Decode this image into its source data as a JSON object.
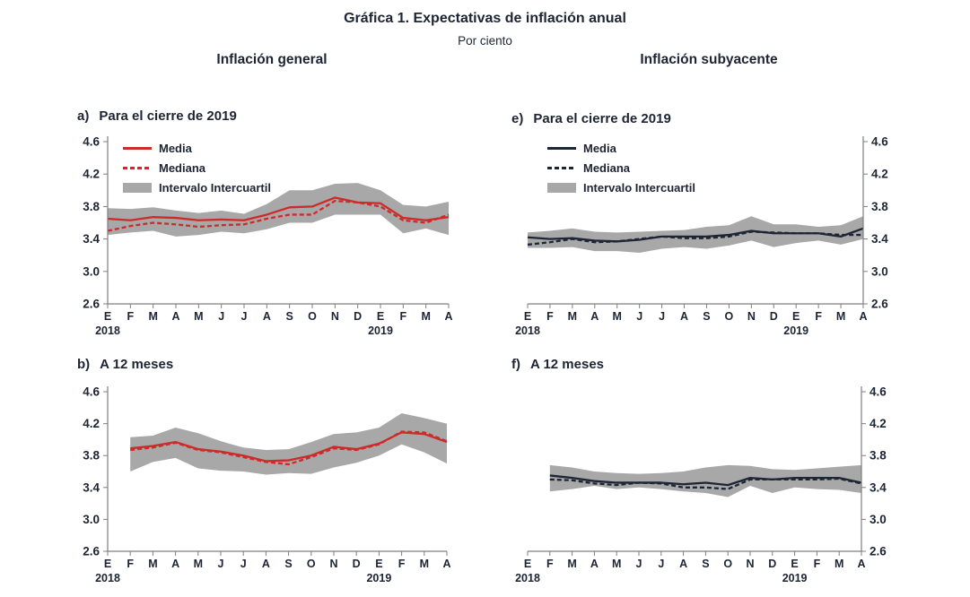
{
  "page": {
    "title": "Gráfica 1. Expectativas de inflación anual",
    "subtitle": "Por ciento",
    "col_left": "Inflación general",
    "col_right": "Inflación subyacente"
  },
  "colors": {
    "general": "#cc2b29",
    "subyacente": "#1e2635",
    "band": "#a8a8a8",
    "axis": "#7f7f7f",
    "text": "#1d2433"
  },
  "chart_data": [
    {
      "id": "a",
      "label": "a)",
      "title": "Para el cierre de 2019",
      "type": "line",
      "color_key": "general",
      "axis_side": "left",
      "legend": true,
      "categories": [
        "E",
        "F",
        "M",
        "A",
        "M",
        "J",
        "J",
        "A",
        "S",
        "O",
        "N",
        "D",
        "E",
        "F",
        "M",
        "A"
      ],
      "year_labels": [
        {
          "index": 0,
          "text": "2018"
        },
        {
          "index": 12,
          "text": "2019"
        }
      ],
      "ylim": [
        2.6,
        4.6
      ],
      "yticks": [
        2.6,
        3.0,
        3.4,
        3.8,
        4.2,
        4.6
      ],
      "series": [
        {
          "name": "Media",
          "style": "solid",
          "values": [
            3.65,
            3.63,
            3.67,
            3.66,
            3.63,
            3.64,
            3.63,
            3.7,
            3.79,
            3.8,
            3.91,
            3.85,
            3.84,
            3.66,
            3.63,
            3.67
          ]
        },
        {
          "name": "Mediana",
          "style": "dashed",
          "values": [
            3.5,
            3.56,
            3.6,
            3.58,
            3.55,
            3.57,
            3.58,
            3.65,
            3.7,
            3.7,
            3.87,
            3.85,
            3.8,
            3.63,
            3.6,
            3.7
          ]
        }
      ],
      "band": {
        "name": "Intervalo Intercuartil",
        "upper": [
          3.78,
          3.77,
          3.79,
          3.75,
          3.72,
          3.75,
          3.71,
          3.83,
          4.0,
          4.0,
          4.08,
          4.09,
          4.0,
          3.82,
          3.8,
          3.86
        ],
        "lower": [
          3.45,
          3.48,
          3.5,
          3.43,
          3.45,
          3.49,
          3.47,
          3.52,
          3.6,
          3.6,
          3.7,
          3.7,
          3.7,
          3.47,
          3.53,
          3.45
        ]
      }
    },
    {
      "id": "e",
      "label": "e)",
      "title": "Para el cierre de 2019",
      "type": "line",
      "color_key": "subyacente",
      "axis_side": "right",
      "legend": true,
      "categories": [
        "E",
        "F",
        "M",
        "A",
        "M",
        "J",
        "J",
        "A",
        "S",
        "O",
        "N",
        "D",
        "E",
        "F",
        "M",
        "A"
      ],
      "year_labels": [
        {
          "index": 0,
          "text": "2018"
        },
        {
          "index": 12,
          "text": "2019"
        }
      ],
      "ylim": [
        2.6,
        4.6
      ],
      "yticks": [
        2.6,
        3.0,
        3.4,
        3.8,
        4.2,
        4.6
      ],
      "series": [
        {
          "name": "Media",
          "style": "solid",
          "values": [
            3.42,
            3.4,
            3.41,
            3.38,
            3.37,
            3.39,
            3.43,
            3.43,
            3.43,
            3.45,
            3.5,
            3.47,
            3.47,
            3.47,
            3.43,
            3.53
          ]
        },
        {
          "name": "Mediana",
          "style": "dashed",
          "values": [
            3.33,
            3.36,
            3.4,
            3.36,
            3.37,
            3.4,
            3.43,
            3.41,
            3.41,
            3.43,
            3.49,
            3.48,
            3.47,
            3.47,
            3.45,
            3.45
          ]
        }
      ],
      "band": {
        "name": "Intervalo Intercuartil",
        "upper": [
          3.48,
          3.5,
          3.53,
          3.49,
          3.48,
          3.49,
          3.5,
          3.51,
          3.55,
          3.57,
          3.68,
          3.58,
          3.58,
          3.55,
          3.57,
          3.68
        ],
        "lower": [
          3.29,
          3.29,
          3.3,
          3.25,
          3.25,
          3.23,
          3.28,
          3.3,
          3.28,
          3.32,
          3.38,
          3.3,
          3.35,
          3.38,
          3.33,
          3.4
        ]
      }
    },
    {
      "id": "b",
      "label": "b)",
      "title": "A 12 meses",
      "type": "line",
      "color_key": "general",
      "axis_side": "left",
      "legend": false,
      "categories": [
        "E",
        "F",
        "M",
        "A",
        "M",
        "J",
        "J",
        "A",
        "S",
        "O",
        "N",
        "D",
        "E",
        "F",
        "M",
        "A"
      ],
      "year_labels": [
        {
          "index": 0,
          "text": "2018"
        },
        {
          "index": 12,
          "text": "2019"
        }
      ],
      "ylim": [
        2.6,
        4.6
      ],
      "yticks": [
        2.6,
        3.0,
        3.4,
        3.8,
        4.2,
        4.6
      ],
      "series": [
        {
          "name": "Media",
          "style": "solid",
          "values": [
            null,
            3.89,
            3.92,
            3.97,
            3.88,
            3.85,
            3.8,
            3.73,
            3.74,
            3.8,
            3.91,
            3.88,
            3.95,
            4.09,
            4.07,
            3.97
          ]
        },
        {
          "name": "Mediana",
          "style": "dashed",
          "values": [
            null,
            3.87,
            3.9,
            3.96,
            3.87,
            3.84,
            3.78,
            3.72,
            3.69,
            3.78,
            3.89,
            3.87,
            3.94,
            4.1,
            4.09,
            3.98
          ]
        }
      ],
      "band": {
        "name": "Intervalo Intercuartil",
        "upper": [
          null,
          4.03,
          4.05,
          4.15,
          4.08,
          3.98,
          3.9,
          3.87,
          3.88,
          3.97,
          4.07,
          4.09,
          4.15,
          4.33,
          4.27,
          4.2
        ],
        "lower": [
          null,
          3.6,
          3.72,
          3.77,
          3.64,
          3.61,
          3.6,
          3.56,
          3.58,
          3.57,
          3.65,
          3.71,
          3.8,
          3.94,
          3.84,
          3.7
        ]
      }
    },
    {
      "id": "f",
      "label": "f)",
      "title": "A 12 meses",
      "type": "line",
      "color_key": "subyacente",
      "axis_side": "right",
      "legend": false,
      "categories": [
        "E",
        "F",
        "M",
        "A",
        "M",
        "J",
        "J",
        "A",
        "S",
        "O",
        "N",
        "D",
        "E",
        "F",
        "M",
        "A"
      ],
      "year_labels": [
        {
          "index": 0,
          "text": "2018"
        },
        {
          "index": 12,
          "text": "2019"
        }
      ],
      "ylim": [
        2.6,
        4.6
      ],
      "yticks": [
        2.6,
        3.0,
        3.4,
        3.8,
        4.2,
        4.6
      ],
      "series": [
        {
          "name": "Media",
          "style": "solid",
          "values": [
            null,
            3.55,
            3.52,
            3.48,
            3.46,
            3.46,
            3.46,
            3.44,
            3.46,
            3.43,
            3.52,
            3.5,
            3.52,
            3.52,
            3.52,
            3.46
          ]
        },
        {
          "name": "Mediana",
          "style": "dashed",
          "values": [
            null,
            3.5,
            3.49,
            3.45,
            3.43,
            3.46,
            3.45,
            3.4,
            3.4,
            3.38,
            3.5,
            3.5,
            3.5,
            3.5,
            3.51,
            3.45
          ]
        }
      ],
      "band": {
        "name": "Intervalo Intercuartil",
        "upper": [
          null,
          3.68,
          3.65,
          3.6,
          3.58,
          3.57,
          3.58,
          3.6,
          3.65,
          3.68,
          3.67,
          3.63,
          3.62,
          3.64,
          3.66,
          3.68
        ],
        "lower": [
          null,
          3.35,
          3.38,
          3.42,
          3.38,
          3.4,
          3.38,
          3.35,
          3.33,
          3.28,
          3.42,
          3.33,
          3.4,
          3.38,
          3.37,
          3.33
        ]
      }
    }
  ]
}
